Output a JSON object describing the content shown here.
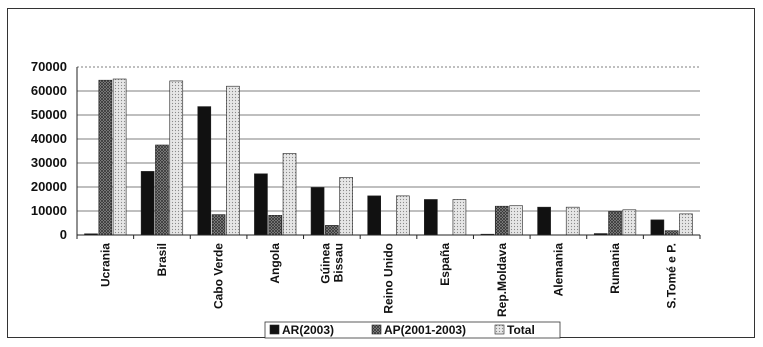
{
  "chart_data": {
    "type": "bar",
    "title": "",
    "xlabel": "",
    "ylabel": "",
    "ylim": [
      0,
      70000
    ],
    "yticks": [
      0,
      10000,
      20000,
      30000,
      40000,
      50000,
      60000,
      70000
    ],
    "grid": true,
    "legend_position": "bottom",
    "categories": [
      [
        "Ucrania"
      ],
      [
        "Brasil"
      ],
      [
        "Cabo Verde"
      ],
      [
        "Angola"
      ],
      [
        "Gúinea",
        "Bissau"
      ],
      [
        "Reino Unido"
      ],
      [
        "España"
      ],
      [
        "Rep.Moldava"
      ],
      [
        "Alemania"
      ],
      [
        "Rumania"
      ],
      [
        "S.Tomé e P."
      ]
    ],
    "series": [
      {
        "name": "AR(2003)",
        "color": "#111111",
        "pattern": "solid",
        "values": [
          500,
          26500,
          53500,
          25500,
          19800,
          16300,
          14800,
          300,
          11600,
          600,
          6300
        ]
      },
      {
        "name": "AP(2001-2003)",
        "color": "#777777",
        "pattern": "crosshatch",
        "values": [
          64500,
          37500,
          8500,
          8200,
          4000,
          0,
          0,
          12000,
          0,
          9800,
          1800
        ]
      },
      {
        "name": "Total",
        "color": "#cccccc",
        "pattern": "dots",
        "values": [
          65000,
          64200,
          62000,
          34000,
          24000,
          16300,
          14800,
          12200,
          11600,
          10500,
          8800
        ]
      }
    ]
  }
}
